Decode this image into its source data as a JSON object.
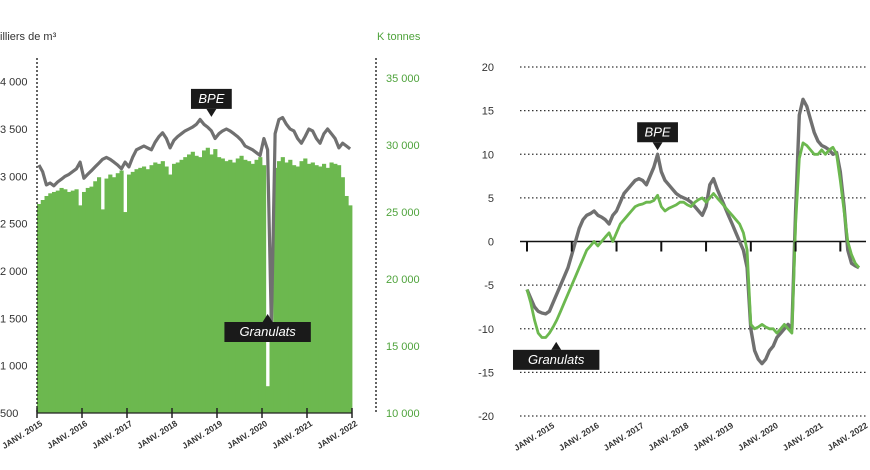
{
  "chart_data": [
    {
      "type": "bar",
      "left_axis_label": "illiers de m³",
      "right_axis_label": "K tonnes",
      "left_ticks": [
        "4 000",
        "3 500",
        "3 000",
        "2 500",
        "2 000",
        "1 500",
        "1 000",
        "500"
      ],
      "right_ticks": [
        "35 000",
        "30 000",
        "25 000",
        "20 000",
        "15 000",
        "10 000"
      ],
      "x_tick_labels": [
        "JANV. 2015",
        "JANV. 2016",
        "JANV. 2017",
        "JANV. 2018",
        "JANV. 2019",
        "JANV. 2020",
        "JANV. 2021",
        "JANV. 2022"
      ],
      "left_ylim": [
        500,
        4250
      ],
      "right_ylim": [
        10000,
        36500
      ],
      "start": "2015-01",
      "series": [
        {
          "name": "Granulats",
          "type": "bar",
          "axis": "right",
          "color": "#6cb84f",
          "values": [
            25600,
            25900,
            26200,
            26400,
            26500,
            26600,
            26800,
            26700,
            26500,
            26600,
            26700,
            25500,
            26500,
            26800,
            26900,
            27300,
            27600,
            25200,
            27500,
            27800,
            27600,
            27900,
            28100,
            25000,
            27800,
            28000,
            28200,
            28300,
            28400,
            28200,
            28500,
            28700,
            28600,
            28800,
            28400,
            27800,
            28600,
            28700,
            28900,
            29100,
            29300,
            29500,
            29200,
            29100,
            29600,
            29800,
            29300,
            29700,
            29100,
            29000,
            28800,
            28900,
            28700,
            29000,
            29200,
            28900,
            28800,
            28600,
            28900,
            29100,
            28500,
            12000,
            16400,
            28300,
            28800,
            29100,
            28700,
            28900,
            28500,
            28400,
            28800,
            29000,
            28600,
            28700,
            28500,
            28400,
            28600,
            28300,
            28700,
            28600,
            28500,
            27600,
            26200,
            25500
          ]
        },
        {
          "name": "BPE",
          "type": "line",
          "axis": "left",
          "color": "#707070",
          "values": [
            3120,
            3050,
            2910,
            2930,
            2900,
            2940,
            2970,
            3000,
            3020,
            3050,
            3080,
            3150,
            2980,
            3020,
            3060,
            3100,
            3140,
            3180,
            3200,
            3180,
            3150,
            3120,
            3080,
            3150,
            3100,
            3200,
            3280,
            3300,
            3320,
            3300,
            3280,
            3360,
            3420,
            3460,
            3400,
            3300,
            3380,
            3420,
            3450,
            3480,
            3500,
            3520,
            3550,
            3600,
            3550,
            3520,
            3480,
            3400,
            3450,
            3480,
            3500,
            3480,
            3450,
            3420,
            3380,
            3320,
            3300,
            3280,
            3250,
            3220,
            3400,
            3280,
            1400,
            3450,
            3600,
            3620,
            3550,
            3500,
            3480,
            3400,
            3350,
            3420,
            3500,
            3480,
            3400,
            3350,
            3450,
            3500,
            3450,
            3400,
            3300,
            3350,
            3320,
            3290
          ]
        }
      ],
      "annotations": [
        {
          "text": "BPE",
          "series": "BPE",
          "point_index": 46
        },
        {
          "text": "Granulats",
          "series": "Granulats",
          "point_index": 61
        }
      ]
    },
    {
      "type": "line",
      "y_ticks": [
        "20",
        "15",
        "10",
        "5",
        "0",
        "-5",
        "-10",
        "-15",
        "-20"
      ],
      "ylim": [
        -20,
        20
      ],
      "x_tick_labels": [
        "JANV. 2015",
        "JANV. 2016",
        "JANV. 2017",
        "JANV. 2018",
        "JANV. 2019",
        "JANV. 2020",
        "JANV. 2021",
        "JANV. 2022"
      ],
      "start": "2015-01",
      "grid": true,
      "series": [
        {
          "name": "BPE",
          "color": "#707070",
          "values": [
            -5.5,
            -6.5,
            -7.5,
            -8.0,
            -8.2,
            -8.3,
            -8.0,
            -7.0,
            -6.0,
            -5.0,
            -4.0,
            -3.0,
            -1.5,
            0,
            1.5,
            2.5,
            3.0,
            3.2,
            3.5,
            3.0,
            2.8,
            2.5,
            2.0,
            3.0,
            3.5,
            4.5,
            5.5,
            6.0,
            6.5,
            7.0,
            7.2,
            7.0,
            6.5,
            7.5,
            8.5,
            10.0,
            8.0,
            7.0,
            6.5,
            6.0,
            5.5,
            5.2,
            5.0,
            4.8,
            4.5,
            4.0,
            3.5,
            3.0,
            4.0,
            6.5,
            7.2,
            6.0,
            5.0,
            4.0,
            3.0,
            2.0,
            1.0,
            0,
            -1.0,
            -3.0,
            -10.0,
            -12.5,
            -13.5,
            -14.0,
            -13.5,
            -12.5,
            -12.0,
            -11.0,
            -10.5,
            -10.0,
            -9.5,
            -10.0,
            3.5,
            14.5,
            16.3,
            15.5,
            14.0,
            12.5,
            11.5,
            11.0,
            10.8,
            10.5,
            10.0,
            10.2,
            8.0,
            4.0,
            -1.0,
            -2.5,
            -2.8,
            -3.0
          ]
        },
        {
          "name": "Granulats",
          "color": "#6cb84f",
          "values": [
            -5.5,
            -7.0,
            -9.0,
            -10.5,
            -11.0,
            -11.0,
            -10.5,
            -9.8,
            -9.0,
            -8.0,
            -7.0,
            -6.0,
            -5.0,
            -4.0,
            -3.0,
            -2.0,
            -1.0,
            -0.5,
            0,
            -0.5,
            0,
            0.5,
            1.0,
            0,
            1.0,
            2.0,
            2.5,
            3.0,
            3.5,
            4.0,
            4.2,
            4.3,
            4.5,
            4.5,
            4.7,
            5.3,
            4.0,
            3.5,
            3.8,
            4.0,
            4.2,
            4.5,
            4.5,
            4.2,
            4.0,
            4.5,
            4.8,
            5.0,
            4.5,
            5.0,
            5.5,
            5.0,
            4.5,
            4.0,
            3.5,
            3.0,
            2.5,
            2.0,
            1.0,
            -1.0,
            -9.5,
            -10.0,
            -9.8,
            -9.5,
            -9.8,
            -10.0,
            -10.0,
            -10.5,
            -10.0,
            -9.5,
            -10.0,
            -10.5,
            2.0,
            9.5,
            11.3,
            11.0,
            10.5,
            10.0,
            10.0,
            10.5,
            10.0,
            10.5,
            10.8,
            10.0,
            7.0,
            3.5,
            0,
            -1.5,
            -2.5,
            -3.0
          ]
        }
      ],
      "annotations": [
        {
          "text": "BPE",
          "series": "BPE",
          "point_index": 35
        },
        {
          "text": "Granulats",
          "series": "Granulats",
          "point_index": 3
        }
      ]
    }
  ]
}
